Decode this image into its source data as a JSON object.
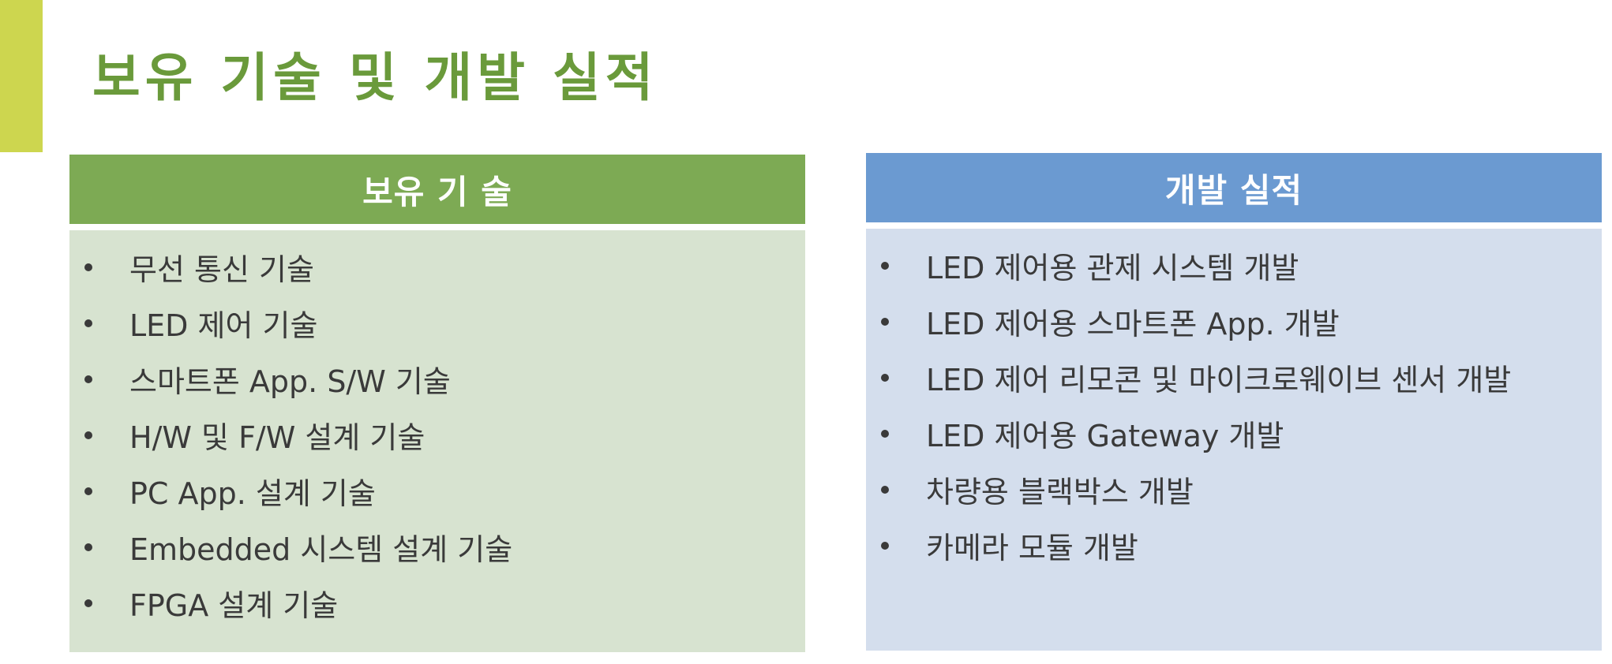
{
  "slide": {
    "title": "보유 기술 및 개발 실적",
    "colors": {
      "accent": "#cdd64f",
      "title": "#6a9a3b",
      "left_header": "#7daa54",
      "left_body": "#d7e3d0",
      "right_header": "#6b9ad1",
      "right_body": "#d4deed"
    }
  },
  "left_panel": {
    "header": "보유 기 술",
    "items": [
      "무선 통신 기술",
      "LED 제어 기술",
      "스마트폰 App. S/W 기술",
      "H/W 및 F/W 설계 기술",
      "PC App. 설계 기술",
      "Embedded 시스템 설계 기술",
      "FPGA 설계 기술"
    ]
  },
  "right_panel": {
    "header": "개발 실적",
    "items": [
      "LED 제어용 관제 시스템 개발",
      "LED 제어용 스마트폰 App. 개발",
      "LED 제어 리모콘 및 마이크로웨이브 센서 개발",
      "LED 제어용 Gateway 개발",
      "차량용 블랙박스 개발",
      "카메라 모듈 개발"
    ]
  }
}
